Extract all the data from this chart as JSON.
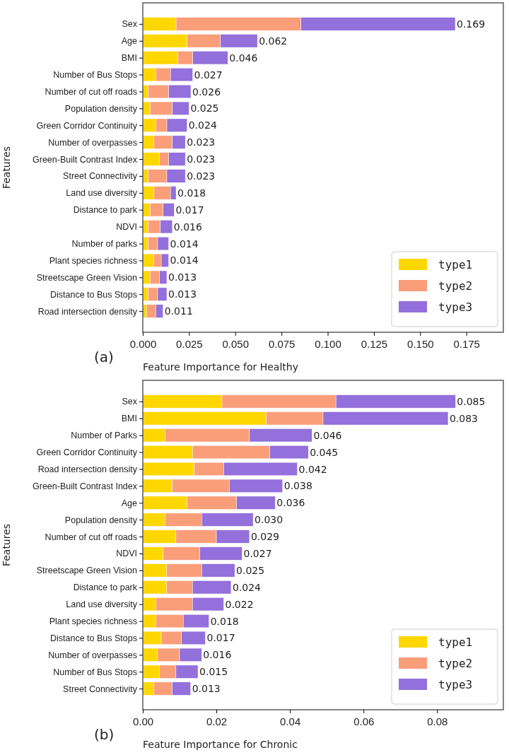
{
  "chart_data": [
    {
      "type": "bar",
      "orientation": "horizontal",
      "stacked": true,
      "xlabel": "Feature Importance for Healthy",
      "ylabel": "Features",
      "annotations": [
        "(a)"
      ],
      "legend": "bottom right",
      "categories": [
        "Sex",
        "Age",
        "BMI",
        "Number of Bus Stops",
        "Number of cut off roads",
        "Population density",
        "Green Corridor Continuity",
        "Number of overpasses",
        "Green-Built Contrast Index",
        "Street Connectivity",
        "Land use diversity",
        "Distance to park",
        "NDVI",
        "Number of parks",
        "Plant species richness",
        "Streetscape Green Vision",
        "Distance to Bus Stops",
        "Road intersection density"
      ],
      "series": [
        {
          "name": "type1",
          "color": "#ffd700",
          "values": [
            0.018,
            0.024,
            0.019,
            0.007,
            0.003,
            0.004,
            0.007,
            0.006,
            0.009,
            0.003,
            0.006,
            0.004,
            0.003,
            0.003,
            0.006,
            0.004,
            0.003,
            0.002
          ]
        },
        {
          "name": "type2",
          "color": "#fa9e7a",
          "values": [
            0.0675,
            0.018,
            0.008,
            0.008,
            0.011,
            0.012,
            0.006,
            0.01,
            0.005,
            0.01,
            0.009,
            0.007,
            0.0065,
            0.005,
            0.004,
            0.005,
            0.005,
            0.005
          ]
        },
        {
          "name": "type3",
          "color": "#9370db",
          "values": [
            0.0835,
            0.02,
            0.019,
            0.012,
            0.012,
            0.009,
            0.011,
            0.007,
            0.009,
            0.01,
            0.003,
            0.006,
            0.0065,
            0.006,
            0.004,
            0.004,
            0.005,
            0.004
          ]
        }
      ],
      "totals": [
        "0.169",
        "0.062",
        "0.046",
        "0.027",
        "0.026",
        "0.025",
        "0.024",
        "0.023",
        "0.023",
        "0.023",
        "0.018",
        "0.017",
        "0.016",
        "0.014",
        "0.014",
        "0.013",
        "0.013",
        "0.011"
      ],
      "xlim": [
        0,
        0.195
      ],
      "xticks": [
        {
          "value": 0,
          "label": "0.000"
        },
        0.025,
        {
          "value": 0.05,
          "label": "0.050"
        },
        0.075,
        {
          "value": 0.1,
          "label": "0.100"
        },
        0.125,
        {
          "value": 0.15,
          "label": "0.150"
        },
        0.175
      ]
    },
    {
      "type": "bar",
      "orientation": "horizontal",
      "stacked": true,
      "xlabel": "Feature Importance for Chronic",
      "ylabel": "Features",
      "annotations": [
        "(b)"
      ],
      "legend": "bottom right",
      "categories": [
        "Sex",
        "BMI",
        "Number of Parks",
        "Green Corridor Continuity",
        "Road intersection density",
        "Green-Built Contrast Index",
        "Age",
        "Population density",
        "Number of cut off roads",
        "NDVI",
        "Streetscape Green Vision",
        "Distance to park",
        "Land use diversity",
        "Plant species richness",
        "Distance to Bus Stops",
        "Number of overpasses",
        "Number of Bus Stops",
        "Street Connectivity"
      ],
      "series": [
        {
          "name": "type1",
          "color": "#ffd700",
          "values": [
            0.0215,
            0.0335,
            0.006,
            0.0135,
            0.014,
            0.008,
            0.012,
            0.006,
            0.009,
            0.0055,
            0.0065,
            0.0065,
            0.0035,
            0.0035,
            0.005,
            0.004,
            0.0045,
            0.003
          ]
        },
        {
          "name": "type2",
          "color": "#fa9e7a",
          "values": [
            0.031,
            0.0155,
            0.023,
            0.021,
            0.008,
            0.0155,
            0.0135,
            0.01,
            0.011,
            0.01,
            0.0095,
            0.007,
            0.01,
            0.0075,
            0.0055,
            0.006,
            0.0045,
            0.005
          ]
        },
        {
          "name": "type3",
          "color": "#9370db",
          "values": [
            0.0325,
            0.034,
            0.017,
            0.0105,
            0.02,
            0.0145,
            0.0105,
            0.014,
            0.009,
            0.0115,
            0.009,
            0.0105,
            0.0085,
            0.007,
            0.0065,
            0.006,
            0.006,
            0.005
          ]
        }
      ],
      "totals": [
        "0.085",
        "0.083",
        "0.046",
        "0.045",
        "0.042",
        "0.038",
        "0.036",
        "0.030",
        "0.029",
        "0.027",
        "0.025",
        "0.024",
        "0.022",
        "0.018",
        "0.017",
        "0.016",
        "0.015",
        "0.013"
      ],
      "xlim": [
        0,
        0.098
      ],
      "xticks": [
        {
          "value": 0,
          "label": "0.00"
        },
        0.02,
        0.04,
        0.06,
        0.08
      ]
    }
  ]
}
